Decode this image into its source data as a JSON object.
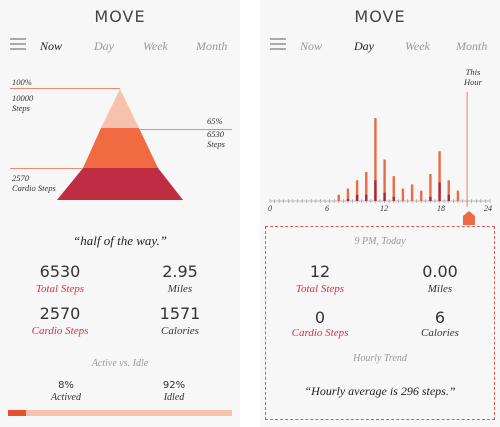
{
  "app_title": "MOVE",
  "tabs": [
    "Now",
    "Day",
    "Week",
    "Month"
  ],
  "now": {
    "pyramid": {
      "top_label_line1": "100%",
      "top_label_line2": "10000",
      "top_label_line3": "Steps",
      "mid_label_line1": "65%",
      "mid_label_line2": "6530",
      "mid_label_line3": "Steps",
      "bot_label_line1": "2570",
      "bot_label_line2": "Cardio Steps",
      "colors": {
        "top": "#f6c2ae",
        "mid": "#f06b42",
        "bottom": "#be2d42"
      }
    },
    "quote": "“half of the way.”",
    "stats": {
      "total_steps_value": "6530",
      "total_steps_label": "Total Steps",
      "miles_value": "2.95",
      "miles_label": "Miles",
      "cardio_steps_value": "2570",
      "cardio_steps_label": "Cardio Steps",
      "calories_value": "1571",
      "calories_label": "Calories"
    },
    "active_idle": {
      "heading": "Active vs. Idle",
      "active_pct": "8%",
      "active_label": "Actived",
      "idle_pct": "92%",
      "idle_label": "Idled",
      "active_fraction": 0.08
    }
  },
  "day": {
    "this_hour_line1": "This",
    "this_hour_line2": "Hour",
    "axis_labels": [
      "0",
      "6",
      "12",
      "18",
      "24"
    ],
    "chart_data": {
      "type": "bar",
      "x": [
        0,
        1,
        2,
        3,
        4,
        5,
        6,
        7,
        8,
        9,
        10,
        11,
        12,
        13,
        14,
        15,
        16,
        17,
        18,
        19,
        20,
        21,
        22,
        23
      ],
      "series": [
        {
          "values": [
            0,
            0,
            0,
            0,
            0,
            0,
            0,
            0.3,
            0.6,
            1.0,
            1.4,
            4.0,
            2.0,
            1.2,
            0.6,
            0.8,
            0.5,
            1.3,
            2.4,
            1.0,
            0.5,
            0,
            0,
            0
          ]
        },
        {
          "values": [
            0,
            0,
            0,
            0,
            0,
            0,
            0,
            0,
            0.1,
            0.3,
            0.3,
            1.0,
            0.4,
            0.2,
            0,
            0,
            0,
            0.2,
            0.9,
            0.3,
            0,
            0,
            0,
            0
          ]
        }
      ],
      "colors": [
        "#ea6b45",
        "#a8283e"
      ],
      "xlim": [
        0,
        24
      ]
    },
    "detail": {
      "time": "9 PM, Today",
      "total_steps_value": "12",
      "total_steps_label": "Total Steps",
      "miles_value": "0.00",
      "miles_label": "Miles",
      "cardio_steps_value": "0",
      "cardio_steps_label": "Cardio Steps",
      "calories_value": "6",
      "calories_label": "Calories",
      "trend_heading": "Hourly Trend",
      "quote": "“Hourly average is 296 steps.”"
    }
  }
}
